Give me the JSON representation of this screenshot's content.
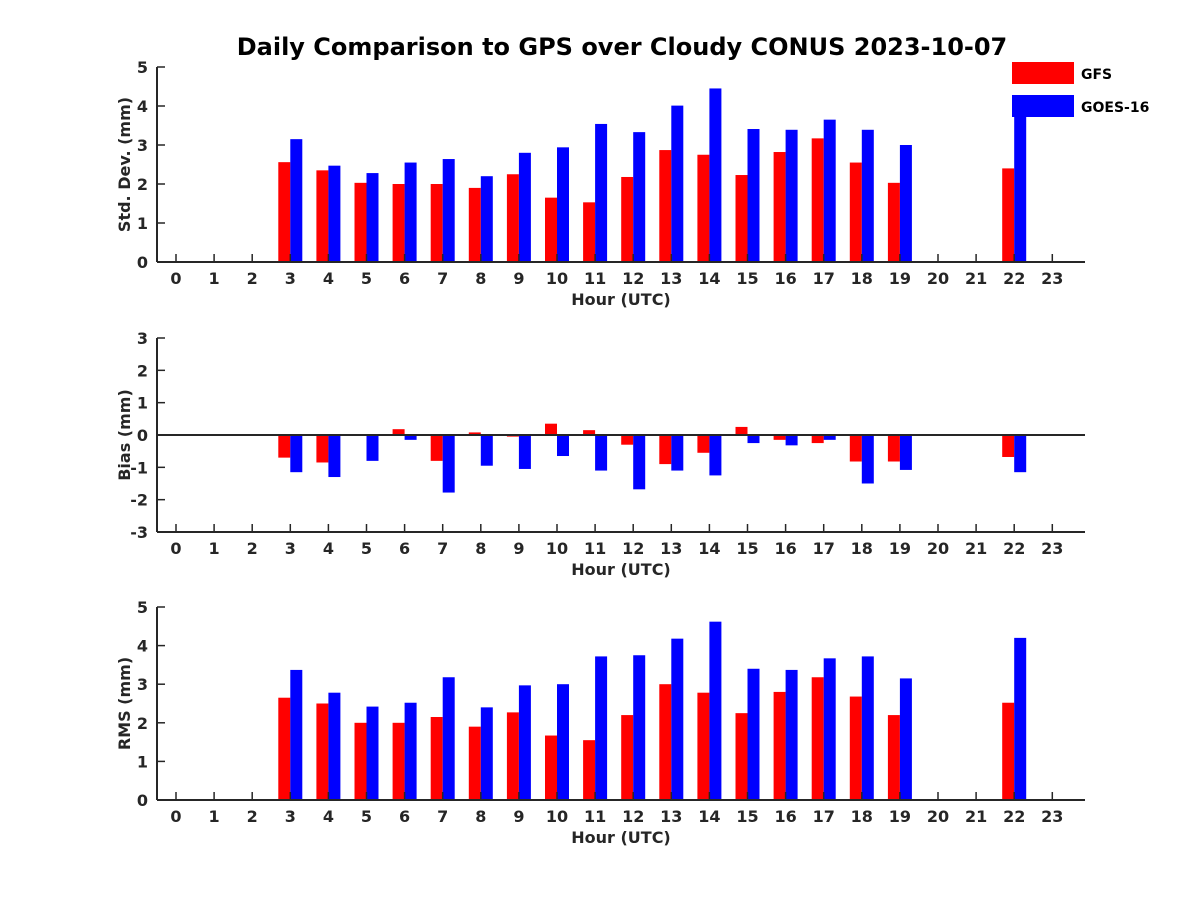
{
  "figure_title": "Daily Comparison to GPS over Cloudy CONUS 2023-10-07",
  "legend": [
    {
      "label": "GFS",
      "color": "#ff0000"
    },
    {
      "label": "GOES-16",
      "color": "#0000ff"
    }
  ],
  "chart_data": [
    {
      "type": "bar",
      "xlabel": "Hour (UTC)",
      "ylabel": "Std. Dev. (mm)",
      "categories": [
        "0",
        "1",
        "2",
        "3",
        "4",
        "5",
        "6",
        "7",
        "8",
        "9",
        "10",
        "11",
        "12",
        "13",
        "14",
        "15",
        "16",
        "17",
        "18",
        "19",
        "20",
        "21",
        "22",
        "23"
      ],
      "ylim": [
        0,
        5
      ],
      "yticks": [
        0,
        1,
        2,
        3,
        4,
        5
      ],
      "series": [
        {
          "name": "GFS",
          "color": "#ff0000",
          "values": [
            null,
            null,
            null,
            2.56,
            2.35,
            2.03,
            2.0,
            2.0,
            1.9,
            2.25,
            1.65,
            1.53,
            2.18,
            2.87,
            2.75,
            2.23,
            2.82,
            3.17,
            2.55,
            2.03,
            null,
            null,
            2.4,
            null
          ]
        },
        {
          "name": "GOES-16",
          "color": "#0000ff",
          "values": [
            null,
            null,
            null,
            3.15,
            2.47,
            2.28,
            2.55,
            2.64,
            2.2,
            2.8,
            2.94,
            3.54,
            3.33,
            4.01,
            4.45,
            3.41,
            3.39,
            3.65,
            3.39,
            3.0,
            null,
            null,
            4.01,
            null
          ]
        }
      ]
    },
    {
      "type": "bar",
      "xlabel": "Hour (UTC)",
      "ylabel": "Bias (mm)",
      "categories": [
        "0",
        "1",
        "2",
        "3",
        "4",
        "5",
        "6",
        "7",
        "8",
        "9",
        "10",
        "11",
        "12",
        "13",
        "14",
        "15",
        "16",
        "17",
        "18",
        "19",
        "20",
        "21",
        "22",
        "23"
      ],
      "ylim": [
        -3,
        3
      ],
      "yticks": [
        -3,
        -2,
        -1,
        0,
        1,
        2,
        3
      ],
      "series": [
        {
          "name": "GFS",
          "color": "#ff0000",
          "values": [
            null,
            null,
            null,
            -0.7,
            -0.85,
            0.0,
            0.18,
            -0.8,
            0.08,
            -0.05,
            0.35,
            0.15,
            -0.3,
            -0.9,
            -0.55,
            0.25,
            -0.15,
            -0.25,
            -0.82,
            -0.82,
            null,
            null,
            -0.68,
            null
          ]
        },
        {
          "name": "GOES-16",
          "color": "#0000ff",
          "values": [
            null,
            null,
            null,
            -1.15,
            -1.3,
            -0.8,
            -0.15,
            -1.78,
            -0.95,
            -1.05,
            -0.65,
            -1.1,
            -1.68,
            -1.1,
            -1.25,
            -0.25,
            -0.32,
            -0.15,
            -1.5,
            -1.08,
            null,
            null,
            -1.15,
            null
          ]
        }
      ]
    },
    {
      "type": "bar",
      "xlabel": "Hour (UTC)",
      "ylabel": "RMS (mm)",
      "categories": [
        "0",
        "1",
        "2",
        "3",
        "4",
        "5",
        "6",
        "7",
        "8",
        "9",
        "10",
        "11",
        "12",
        "13",
        "14",
        "15",
        "16",
        "17",
        "18",
        "19",
        "20",
        "21",
        "22",
        "23"
      ],
      "ylim": [
        0,
        5
      ],
      "yticks": [
        0,
        1,
        2,
        3,
        4,
        5
      ],
      "series": [
        {
          "name": "GFS",
          "color": "#ff0000",
          "values": [
            null,
            null,
            null,
            2.65,
            2.5,
            2.0,
            2.0,
            2.15,
            1.9,
            2.27,
            1.67,
            1.55,
            2.2,
            3.0,
            2.78,
            2.25,
            2.8,
            3.18,
            2.68,
            2.2,
            null,
            null,
            2.52,
            null
          ]
        },
        {
          "name": "GOES-16",
          "color": "#0000ff",
          "values": [
            null,
            null,
            null,
            3.37,
            2.78,
            2.42,
            2.52,
            3.18,
            2.4,
            2.97,
            3.0,
            3.72,
            3.75,
            4.18,
            4.62,
            3.4,
            3.37,
            3.67,
            3.72,
            3.15,
            null,
            null,
            4.2,
            null
          ]
        }
      ]
    }
  ]
}
